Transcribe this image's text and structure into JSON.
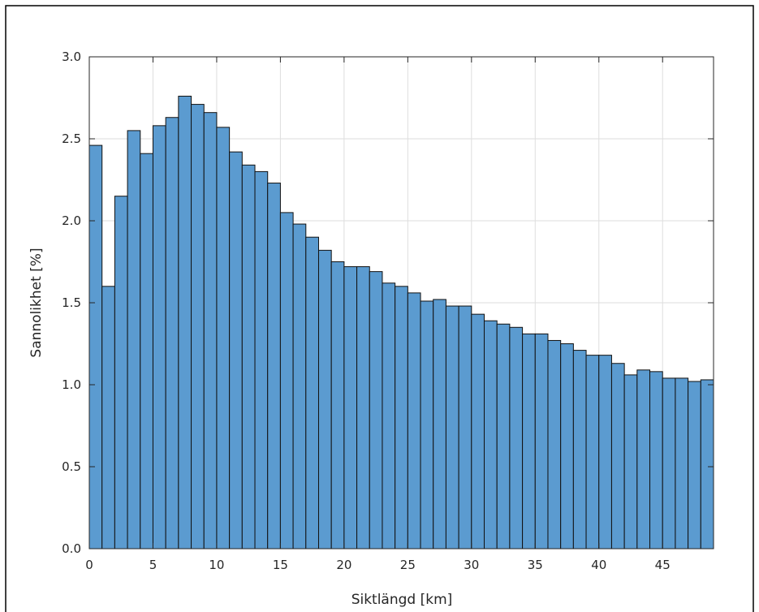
{
  "chart_data": {
    "type": "bar",
    "title": "",
    "xlabel": "Siktlängd [km]",
    "ylabel": "Sannolikhet [%]",
    "xlim": [
      0,
      49
    ],
    "ylim": [
      0,
      3.0
    ],
    "xticks": [
      0,
      5,
      10,
      15,
      20,
      25,
      30,
      35,
      40,
      45
    ],
    "xtick_labels": [
      "0",
      "5",
      "10",
      "15",
      "20",
      "25",
      "30",
      "35",
      "40",
      "45"
    ],
    "yticks": [
      0,
      0.5,
      1.0,
      1.5,
      2.0,
      2.5,
      3.0
    ],
    "ytick_labels": [
      "0.0",
      "0.5",
      "1.0",
      "1.5",
      "2.0",
      "2.5",
      "3.0"
    ],
    "grid": true,
    "bin_width": 1,
    "bin_starts": [
      0,
      1,
      2,
      3,
      4,
      5,
      6,
      7,
      8,
      9,
      10,
      11,
      12,
      13,
      14,
      15,
      16,
      17,
      18,
      19,
      20,
      21,
      22,
      23,
      24,
      25,
      26,
      27,
      28,
      29,
      30,
      31,
      32,
      33,
      34,
      35,
      36,
      37,
      38,
      39,
      40,
      41,
      42,
      43,
      44,
      45,
      46,
      47,
      48
    ],
    "values": [
      2.46,
      1.6,
      2.15,
      2.55,
      2.41,
      2.58,
      2.63,
      2.76,
      2.71,
      2.66,
      2.57,
      2.42,
      2.34,
      2.3,
      2.23,
      2.05,
      1.98,
      1.9,
      1.82,
      1.75,
      1.72,
      1.72,
      1.69,
      1.62,
      1.6,
      1.56,
      1.51,
      1.52,
      1.48,
      1.48,
      1.43,
      1.39,
      1.37,
      1.35,
      1.31,
      1.31,
      1.27,
      1.25,
      1.21,
      1.18,
      1.18,
      1.13,
      1.06,
      1.09,
      1.08,
      1.04,
      1.04,
      1.02,
      1.03
    ],
    "colors": {
      "bar_fill": "#5b9bd0",
      "bar_edge": "#111111",
      "grid": "#dedede",
      "axis": "#262626",
      "frame": "#000000"
    }
  }
}
